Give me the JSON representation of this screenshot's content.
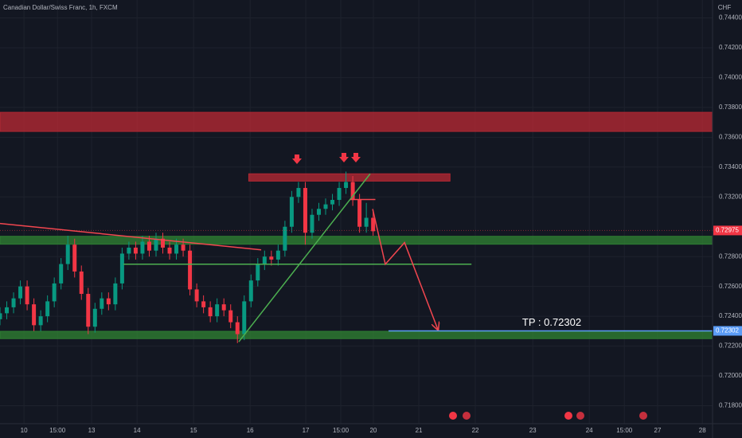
{
  "chart_data": {
    "type": "candlestick",
    "title": "Canadian Dollar/Swiss Franc, 1h, FXCM",
    "currency": "CHF",
    "up_color": "#089981",
    "down_color": "#f23645",
    "grid": true,
    "xlim": [
      0,
      315.1
    ],
    "ylim": [
      0.7168,
      0.7452
    ],
    "xticks": [
      {
        "value": 10.6,
        "label": "10"
      },
      {
        "value": 25.4,
        "label": "15:00"
      },
      {
        "value": 40.5,
        "label": "13"
      },
      {
        "value": 60.6,
        "label": "14"
      },
      {
        "value": 85.6,
        "label": "15"
      },
      {
        "value": 110.6,
        "label": "16"
      },
      {
        "value": 135.2,
        "label": "17"
      },
      {
        "value": 150.7,
        "label": "15:00"
      },
      {
        "value": 165.1,
        "label": "20"
      },
      {
        "value": 185.2,
        "label": "21"
      },
      {
        "value": 210.2,
        "label": "22"
      },
      {
        "value": 235.6,
        "label": "23"
      },
      {
        "value": 260.6,
        "label": "24"
      },
      {
        "value": 276.1,
        "label": "15:00"
      },
      {
        "value": 290.8,
        "label": "27"
      },
      {
        "value": 310.6,
        "label": "28"
      }
    ],
    "yticks": [
      {
        "value": 0.744,
        "label": "0.74400"
      },
      {
        "value": 0.742,
        "label": "0.74200"
      },
      {
        "value": 0.74,
        "label": "0.74000"
      },
      {
        "value": 0.738,
        "label": "0.73800"
      },
      {
        "value": 0.736,
        "label": "0.73600"
      },
      {
        "value": 0.734,
        "label": "0.73400"
      },
      {
        "value": 0.732,
        "label": "0.73200"
      },
      {
        "value": 0.728,
        "label": "0.72800"
      },
      {
        "value": 0.726,
        "label": "0.72600"
      },
      {
        "value": 0.724,
        "label": "0.72400"
      },
      {
        "value": 0.722,
        "label": "0.72200"
      },
      {
        "value": 0.72,
        "label": "0.72000"
      },
      {
        "value": 0.718,
        "label": "0.71800"
      }
    ],
    "x": [
      0,
      3,
      6,
      9,
      12,
      15,
      18,
      21,
      24,
      27,
      30,
      33,
      36,
      39,
      42,
      45,
      48,
      51,
      54,
      57,
      60,
      63,
      66,
      69,
      72,
      75,
      78,
      81,
      84,
      87,
      90,
      93,
      96,
      99,
      102,
      105,
      108,
      111,
      114,
      117,
      120,
      123,
      126,
      129,
      132,
      135,
      138,
      141,
      144,
      147,
      150,
      153,
      156,
      159,
      162,
      165
    ],
    "open": [
      0.7238,
      0.7242,
      0.7246,
      0.7252,
      0.726,
      0.7248,
      0.7234,
      0.724,
      0.725,
      0.7262,
      0.7275,
      0.7288,
      0.727,
      0.7255,
      0.7233,
      0.7245,
      0.7252,
      0.7248,
      0.7262,
      0.7282,
      0.7286,
      0.7282,
      0.729,
      0.7284,
      0.7292,
      0.7286,
      0.7282,
      0.7288,
      0.7284,
      0.7258,
      0.725,
      0.7246,
      0.724,
      0.7248,
      0.7244,
      0.7236,
      0.7228,
      0.725,
      0.7264,
      0.7275,
      0.728,
      0.7278,
      0.7284,
      0.73,
      0.732,
      0.7326,
      0.7296,
      0.7308,
      0.7312,
      0.7315,
      0.7318,
      0.7326,
      0.733,
      0.7318,
      0.73,
      0.7306
    ],
    "high": [
      0.7246,
      0.725,
      0.7256,
      0.7264,
      0.7264,
      0.7252,
      0.7244,
      0.7254,
      0.7266,
      0.7279,
      0.7294,
      0.7292,
      0.7274,
      0.7259,
      0.7249,
      0.7256,
      0.7256,
      0.7266,
      0.7286,
      0.729,
      0.729,
      0.7294,
      0.7294,
      0.7296,
      0.7296,
      0.729,
      0.7292,
      0.7292,
      0.7288,
      0.7262,
      0.7254,
      0.725,
      0.7252,
      0.7252,
      0.7248,
      0.724,
      0.7254,
      0.7268,
      0.7279,
      0.7284,
      0.7284,
      0.7288,
      0.7304,
      0.7324,
      0.733,
      0.733,
      0.7312,
      0.7316,
      0.7319,
      0.7322,
      0.733,
      0.7337,
      0.7334,
      0.7322,
      0.7316,
      0.731
    ],
    "low": [
      0.7234,
      0.7238,
      0.7242,
      0.7248,
      0.7244,
      0.723,
      0.723,
      0.7236,
      0.7246,
      0.7258,
      0.7271,
      0.7266,
      0.7251,
      0.7228,
      0.7229,
      0.7241,
      0.7244,
      0.7244,
      0.7258,
      0.7278,
      0.7278,
      0.7278,
      0.728,
      0.728,
      0.7282,
      0.7278,
      0.7278,
      0.728,
      0.7254,
      0.7246,
      0.7242,
      0.7236,
      0.7236,
      0.724,
      0.7232,
      0.7222,
      0.7224,
      0.7246,
      0.726,
      0.7271,
      0.7274,
      0.7274,
      0.728,
      0.7296,
      0.7316,
      0.7288,
      0.7292,
      0.7304,
      0.7308,
      0.7311,
      0.7314,
      0.7322,
      0.7314,
      0.7296,
      0.7296,
      0.7294
    ],
    "close": [
      0.7242,
      0.7246,
      0.7252,
      0.726,
      0.7248,
      0.7234,
      0.724,
      0.725,
      0.7262,
      0.7275,
      0.7288,
      0.727,
      0.7255,
      0.7233,
      0.7245,
      0.7252,
      0.7248,
      0.7262,
      0.7282,
      0.7286,
      0.7282,
      0.729,
      0.7284,
      0.7292,
      0.7286,
      0.7282,
      0.7288,
      0.7284,
      0.7258,
      0.725,
      0.7246,
      0.724,
      0.7248,
      0.7244,
      0.7236,
      0.7228,
      0.725,
      0.7264,
      0.7275,
      0.728,
      0.7278,
      0.7284,
      0.73,
      0.732,
      0.7326,
      0.7296,
      0.7308,
      0.7312,
      0.7315,
      0.7318,
      0.7326,
      0.733,
      0.7318,
      0.73,
      0.7306,
      0.7297
    ],
    "zones": [
      {
        "from": 0.73639,
        "to": 0.73767,
        "color": "#b22833"
      },
      {
        "from": 0.73306,
        "to": 0.73355,
        "x": [
          110,
          199
        ],
        "color": "#b22833"
      },
      {
        "from": 0.72883,
        "to": 0.72936,
        "color": "#2e7d32"
      },
      {
        "from": 0.7225,
        "to": 0.72299,
        "color": "#2e7d32"
      }
    ],
    "lines": [
      {
        "x": [
          0,
          115.5
        ],
        "y": [
          0.73022,
          0.72845
        ],
        "color": "#f2464f"
      },
      {
        "x": [
          54.6,
          208.5
        ],
        "y": [
          0.72749,
          0.72749
        ],
        "color": "#4caf50"
      },
      {
        "x": [
          105.6,
          163.7
        ],
        "y": [
          0.72229,
          0.73355
        ],
        "color": "#4caf50"
      },
      {
        "x": [
          155,
          166
        ],
        "y": [
          0.73183,
          0.73183
        ],
        "color": "#f2464f"
      },
      {
        "x": [
          164.8,
          170.4,
          178.9,
          193.7
        ],
        "y": [
          0.73119,
          0.72749,
          0.72894,
          0.72309
        ],
        "color": "#f2464f"
      }
    ],
    "last_price": {
      "value": 0.72975,
      "label": "0.72975",
      "color": "#f23645"
    },
    "take_profit": {
      "value": 0.72302,
      "start": 171.8,
      "label": "TP : 0.72302",
      "axis_label": "0.72302",
      "color": "#5b9cf6"
    }
  }
}
